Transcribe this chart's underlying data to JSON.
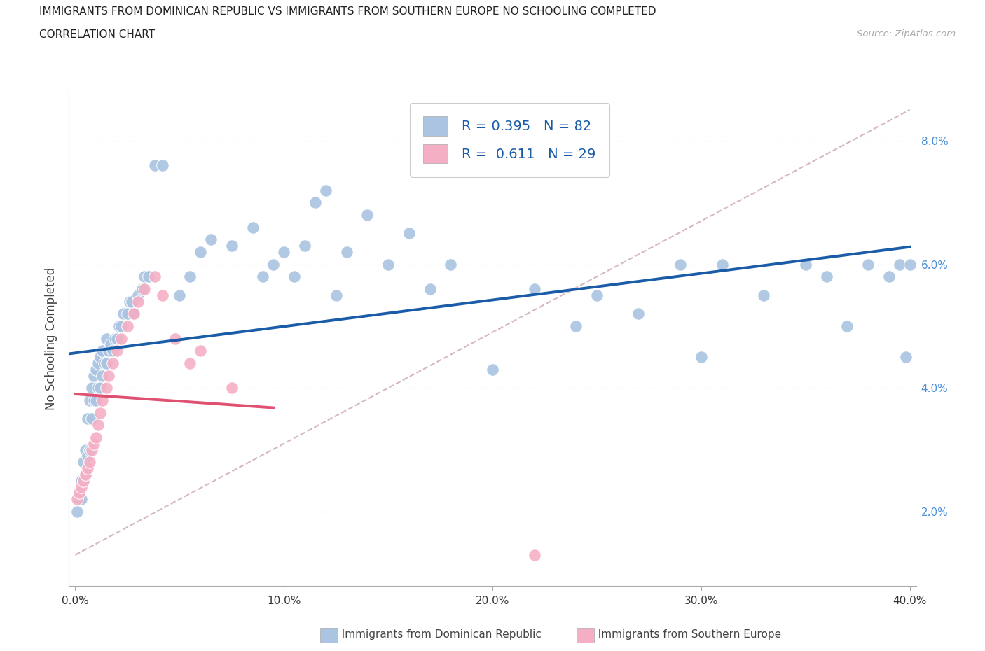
{
  "title_line1": "IMMIGRANTS FROM DOMINICAN REPUBLIC VS IMMIGRANTS FROM SOUTHERN EUROPE NO SCHOOLING COMPLETED",
  "title_line2": "CORRELATION CHART",
  "source": "Source: ZipAtlas.com",
  "ylabel": "No Schooling Completed",
  "xlim": [
    -0.003,
    0.403
  ],
  "ylim": [
    0.008,
    0.088
  ],
  "xticks": [
    0.0,
    0.1,
    0.2,
    0.3,
    0.4
  ],
  "yticks": [
    0.02,
    0.04,
    0.06,
    0.08
  ],
  "color_blue": "#aac4e2",
  "color_pink": "#f4afc4",
  "color_blue_line": "#1a5ca8",
  "color_pink_line": "#e05070",
  "color_diag": "#d0b0b8",
  "R_blue": 0.395,
  "N_blue": 82,
  "R_pink": 0.611,
  "N_pink": 29,
  "legend_label_blue": "Immigrants from Dominican Republic",
  "legend_label_pink": "Immigrants from Southern Europe",
  "blue_x": [
    0.001,
    0.002,
    0.003,
    0.003,
    0.004,
    0.004,
    0.005,
    0.005,
    0.006,
    0.006,
    0.007,
    0.007,
    0.008,
    0.008,
    0.009,
    0.009,
    0.01,
    0.01,
    0.011,
    0.011,
    0.012,
    0.012,
    0.013,
    0.013,
    0.014,
    0.015,
    0.015,
    0.016,
    0.017,
    0.018,
    0.019,
    0.02,
    0.021,
    0.022,
    0.023,
    0.025,
    0.026,
    0.027,
    0.028,
    0.03,
    0.032,
    0.033,
    0.035,
    0.038,
    0.042,
    0.05,
    0.055,
    0.06,
    0.065,
    0.075,
    0.085,
    0.09,
    0.095,
    0.1,
    0.105,
    0.11,
    0.115,
    0.12,
    0.125,
    0.13,
    0.14,
    0.15,
    0.16,
    0.17,
    0.18,
    0.2,
    0.22,
    0.24,
    0.25,
    0.27,
    0.29,
    0.3,
    0.31,
    0.33,
    0.35,
    0.36,
    0.37,
    0.38,
    0.39,
    0.395,
    0.398,
    0.4
  ],
  "blue_y": [
    0.02,
    0.022,
    0.022,
    0.025,
    0.025,
    0.028,
    0.026,
    0.03,
    0.029,
    0.035,
    0.03,
    0.038,
    0.035,
    0.04,
    0.038,
    0.042,
    0.038,
    0.043,
    0.04,
    0.044,
    0.04,
    0.045,
    0.042,
    0.046,
    0.044,
    0.044,
    0.048,
    0.046,
    0.047,
    0.046,
    0.048,
    0.048,
    0.05,
    0.05,
    0.052,
    0.052,
    0.054,
    0.054,
    0.052,
    0.055,
    0.056,
    0.058,
    0.058,
    0.076,
    0.076,
    0.055,
    0.058,
    0.062,
    0.064,
    0.063,
    0.066,
    0.058,
    0.06,
    0.062,
    0.058,
    0.063,
    0.07,
    0.072,
    0.055,
    0.062,
    0.068,
    0.06,
    0.065,
    0.056,
    0.06,
    0.043,
    0.056,
    0.05,
    0.055,
    0.052,
    0.06,
    0.045,
    0.06,
    0.055,
    0.06,
    0.058,
    0.05,
    0.06,
    0.058,
    0.06,
    0.045,
    0.06
  ],
  "pink_x": [
    0.001,
    0.002,
    0.003,
    0.004,
    0.005,
    0.006,
    0.007,
    0.008,
    0.009,
    0.01,
    0.011,
    0.012,
    0.013,
    0.015,
    0.016,
    0.018,
    0.02,
    0.022,
    0.025,
    0.028,
    0.03,
    0.033,
    0.038,
    0.042,
    0.048,
    0.055,
    0.06,
    0.075,
    0.22
  ],
  "pink_y": [
    0.022,
    0.023,
    0.024,
    0.025,
    0.026,
    0.027,
    0.028,
    0.03,
    0.031,
    0.032,
    0.034,
    0.036,
    0.038,
    0.04,
    0.042,
    0.044,
    0.046,
    0.048,
    0.05,
    0.052,
    0.054,
    0.056,
    0.058,
    0.055,
    0.048,
    0.044,
    0.046,
    0.04,
    0.013
  ]
}
